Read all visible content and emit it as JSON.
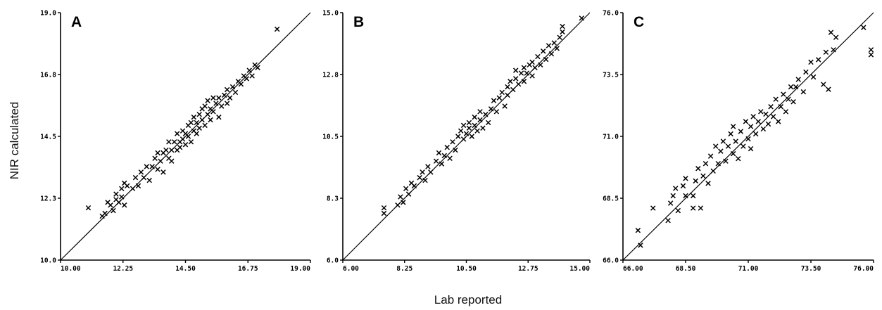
{
  "figure": {
    "ylabel": "NIR calculated",
    "xlabel": "Lab reported"
  },
  "chart_data": [
    {
      "type": "scatter",
      "panel": "A",
      "title": "A",
      "x_tick_labels": [
        "10.00",
        "12.25",
        "14.50",
        "16.75",
        "19.00"
      ],
      "y_tick_labels": [
        "10.0",
        "12.3",
        "14.5",
        "16.8",
        "19.0"
      ],
      "xlim": [
        10.0,
        19.0
      ],
      "ylim": [
        10.0,
        19.0
      ],
      "reference_line": "y = x",
      "grid": false,
      "marker": "x",
      "points": [
        [
          11.0,
          11.9
        ],
        [
          11.5,
          11.6
        ],
        [
          11.6,
          11.7
        ],
        [
          11.7,
          12.1
        ],
        [
          11.8,
          12.0
        ],
        [
          11.9,
          11.8
        ],
        [
          12.0,
          12.2
        ],
        [
          12.0,
          12.4
        ],
        [
          12.1,
          12.1
        ],
        [
          12.2,
          12.6
        ],
        [
          12.2,
          12.3
        ],
        [
          12.3,
          12.8
        ],
        [
          12.3,
          12.0
        ],
        [
          12.4,
          12.7
        ],
        [
          12.6,
          12.6
        ],
        [
          12.7,
          13.0
        ],
        [
          12.8,
          12.7
        ],
        [
          12.9,
          13.2
        ],
        [
          13.0,
          13.0
        ],
        [
          13.1,
          13.4
        ],
        [
          13.2,
          12.9
        ],
        [
          13.3,
          13.4
        ],
        [
          13.4,
          13.7
        ],
        [
          13.5,
          13.3
        ],
        [
          13.5,
          13.9
        ],
        [
          13.6,
          13.6
        ],
        [
          13.7,
          13.9
        ],
        [
          13.7,
          13.2
        ],
        [
          13.8,
          14.0
        ],
        [
          13.9,
          13.7
        ],
        [
          13.9,
          14.3
        ],
        [
          14.0,
          14.0
        ],
        [
          14.0,
          13.6
        ],
        [
          14.1,
          14.3
        ],
        [
          14.2,
          14.0
        ],
        [
          14.2,
          14.6
        ],
        [
          14.3,
          14.3
        ],
        [
          14.3,
          14.1
        ],
        [
          14.4,
          14.7
        ],
        [
          14.4,
          14.4
        ],
        [
          14.5,
          14.2
        ],
        [
          14.5,
          14.6
        ],
        [
          14.6,
          14.9
        ],
        [
          14.6,
          14.5
        ],
        [
          14.7,
          14.3
        ],
        [
          14.7,
          15.0
        ],
        [
          14.8,
          14.7
        ],
        [
          14.8,
          15.2
        ],
        [
          14.9,
          14.6
        ],
        [
          14.9,
          15.0
        ],
        [
          15.0,
          15.3
        ],
        [
          15.0,
          14.8
        ],
        [
          15.1,
          15.5
        ],
        [
          15.1,
          15.1
        ],
        [
          15.2,
          14.9
        ],
        [
          15.2,
          15.6
        ],
        [
          15.3,
          15.3
        ],
        [
          15.3,
          15.8
        ],
        [
          15.4,
          15.1
        ],
        [
          15.4,
          15.5
        ],
        [
          15.5,
          15.9
        ],
        [
          15.5,
          15.4
        ],
        [
          15.6,
          15.7
        ],
        [
          15.7,
          15.2
        ],
        [
          15.7,
          15.9
        ],
        [
          15.8,
          15.6
        ],
        [
          15.9,
          16.0
        ],
        [
          16.0,
          15.7
        ],
        [
          16.0,
          16.2
        ],
        [
          16.1,
          15.9
        ],
        [
          16.2,
          16.3
        ],
        [
          16.3,
          16.1
        ],
        [
          16.4,
          16.5
        ],
        [
          16.5,
          16.4
        ],
        [
          16.6,
          16.7
        ],
        [
          16.7,
          16.6
        ],
        [
          16.8,
          16.9
        ],
        [
          16.9,
          16.7
        ],
        [
          17.0,
          17.1
        ],
        [
          17.1,
          17.0
        ],
        [
          17.8,
          18.4
        ]
      ]
    },
    {
      "type": "scatter",
      "panel": "B",
      "title": "B",
      "x_tick_labels": [
        "6.00",
        "8.25",
        "10.50",
        "12.75",
        "15.00"
      ],
      "y_tick_labels": [
        "6.0",
        "8.3",
        "10.5",
        "12.8",
        "15.0"
      ],
      "xlim": [
        6.0,
        15.0
      ],
      "ylim": [
        6.0,
        15.0
      ],
      "reference_line": "y = x",
      "grid": false,
      "marker": "x",
      "points": [
        [
          7.5,
          7.9
        ],
        [
          7.5,
          7.7
        ],
        [
          8.0,
          8.0
        ],
        [
          8.1,
          8.3
        ],
        [
          8.2,
          8.1
        ],
        [
          8.3,
          8.6
        ],
        [
          8.4,
          8.4
        ],
        [
          8.5,
          8.8
        ],
        [
          8.6,
          8.7
        ],
        [
          8.8,
          9.0
        ],
        [
          8.9,
          9.2
        ],
        [
          9.0,
          8.9
        ],
        [
          9.1,
          9.4
        ],
        [
          9.2,
          9.2
        ],
        [
          9.4,
          9.6
        ],
        [
          9.5,
          9.9
        ],
        [
          9.6,
          9.5
        ],
        [
          9.7,
          9.8
        ],
        [
          9.8,
          10.1
        ],
        [
          9.9,
          9.7
        ],
        [
          10.0,
          10.3
        ],
        [
          10.1,
          10.0
        ],
        [
          10.2,
          10.5
        ],
        [
          10.3,
          10.7
        ],
        [
          10.4,
          10.4
        ],
        [
          10.4,
          10.9
        ],
        [
          10.5,
          10.6
        ],
        [
          10.6,
          10.8
        ],
        [
          10.6,
          11.0
        ],
        [
          10.7,
          10.5
        ],
        [
          10.8,
          10.9
        ],
        [
          10.8,
          11.2
        ],
        [
          10.9,
          10.7
        ],
        [
          11.0,
          11.1
        ],
        [
          11.0,
          11.4
        ],
        [
          11.1,
          10.8
        ],
        [
          11.2,
          11.3
        ],
        [
          11.3,
          11.0
        ],
        [
          11.4,
          11.5
        ],
        [
          11.5,
          11.8
        ],
        [
          11.6,
          11.4
        ],
        [
          11.7,
          11.9
        ],
        [
          11.8,
          12.1
        ],
        [
          11.9,
          11.6
        ],
        [
          12.0,
          12.3
        ],
        [
          12.0,
          12.0
        ],
        [
          12.1,
          12.5
        ],
        [
          12.2,
          12.2
        ],
        [
          12.3,
          12.6
        ],
        [
          12.3,
          12.9
        ],
        [
          12.4,
          12.4
        ],
        [
          12.5,
          12.8
        ],
        [
          12.6,
          13.0
        ],
        [
          12.6,
          12.5
        ],
        [
          12.7,
          12.8
        ],
        [
          12.8,
          13.1
        ],
        [
          12.9,
          12.7
        ],
        [
          12.9,
          13.2
        ],
        [
          13.0,
          13.0
        ],
        [
          13.1,
          13.4
        ],
        [
          13.2,
          13.1
        ],
        [
          13.3,
          13.6
        ],
        [
          13.4,
          13.3
        ],
        [
          13.5,
          13.8
        ],
        [
          13.6,
          13.5
        ],
        [
          13.7,
          13.9
        ],
        [
          13.8,
          13.7
        ],
        [
          13.9,
          14.1
        ],
        [
          14.0,
          14.3
        ],
        [
          14.0,
          14.5
        ],
        [
          14.7,
          14.8
        ]
      ]
    },
    {
      "type": "scatter",
      "panel": "C",
      "title": "C",
      "x_tick_labels": [
        "66.00",
        "68.50",
        "71.00",
        "73.50",
        "76.00"
      ],
      "y_tick_labels": [
        "66.0",
        "68.5",
        "71.0",
        "73.5",
        "76.0"
      ],
      "xlim": [
        66.0,
        76.0
      ],
      "ylim": [
        66.0,
        76.0
      ],
      "reference_line": "y = x",
      "grid": false,
      "marker": "x",
      "points": [
        [
          66.6,
          67.2
        ],
        [
          66.7,
          66.6
        ],
        [
          67.2,
          68.1
        ],
        [
          67.8,
          67.6
        ],
        [
          67.9,
          68.3
        ],
        [
          68.0,
          68.6
        ],
        [
          68.1,
          68.9
        ],
        [
          68.2,
          68.0
        ],
        [
          68.4,
          69.0
        ],
        [
          68.5,
          68.6
        ],
        [
          68.5,
          69.3
        ],
        [
          68.8,
          68.1
        ],
        [
          68.8,
          68.6
        ],
        [
          68.9,
          69.2
        ],
        [
          69.0,
          69.7
        ],
        [
          69.1,
          68.1
        ],
        [
          69.2,
          69.4
        ],
        [
          69.3,
          69.9
        ],
        [
          69.4,
          69.1
        ],
        [
          69.5,
          70.2
        ],
        [
          69.6,
          69.6
        ],
        [
          69.7,
          70.6
        ],
        [
          69.8,
          69.9
        ],
        [
          69.9,
          70.4
        ],
        [
          70.0,
          70.8
        ],
        [
          70.1,
          70.0
        ],
        [
          70.2,
          70.6
        ],
        [
          70.3,
          71.1
        ],
        [
          70.4,
          70.3
        ],
        [
          70.4,
          71.4
        ],
        [
          70.5,
          70.8
        ],
        [
          70.6,
          70.1
        ],
        [
          70.7,
          71.2
        ],
        [
          70.8,
          70.6
        ],
        [
          70.9,
          71.6
        ],
        [
          71.0,
          70.9
        ],
        [
          71.1,
          71.4
        ],
        [
          71.1,
          70.5
        ],
        [
          71.2,
          71.8
        ],
        [
          71.3,
          71.1
        ],
        [
          71.4,
          71.6
        ],
        [
          71.5,
          72.0
        ],
        [
          71.6,
          71.3
        ],
        [
          71.7,
          71.9
        ],
        [
          71.8,
          71.5
        ],
        [
          71.9,
          72.2
        ],
        [
          72.0,
          71.8
        ],
        [
          72.1,
          72.5
        ],
        [
          72.2,
          71.6
        ],
        [
          72.3,
          72.2
        ],
        [
          72.4,
          72.7
        ],
        [
          72.5,
          72.0
        ],
        [
          72.6,
          72.5
        ],
        [
          72.7,
          73.0
        ],
        [
          72.8,
          72.4
        ],
        [
          72.9,
          73.0
        ],
        [
          73.0,
          73.3
        ],
        [
          73.2,
          72.8
        ],
        [
          73.3,
          73.6
        ],
        [
          73.5,
          74.0
        ],
        [
          73.6,
          73.4
        ],
        [
          73.8,
          74.1
        ],
        [
          74.0,
          73.1
        ],
        [
          74.1,
          74.4
        ],
        [
          74.2,
          72.9
        ],
        [
          74.3,
          75.2
        ],
        [
          74.4,
          74.5
        ],
        [
          74.5,
          75.0
        ],
        [
          75.6,
          75.4
        ],
        [
          75.9,
          74.5
        ],
        [
          75.9,
          74.3
        ]
      ]
    }
  ]
}
